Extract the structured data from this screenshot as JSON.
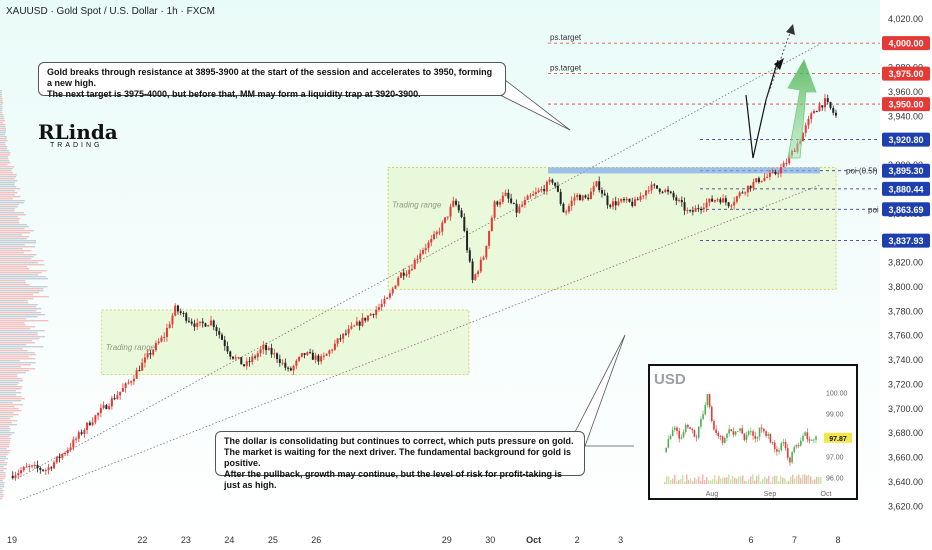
{
  "header": {
    "title": "XAUUSD · Gold Spot / U.S. Dollar · 1h · FXCM"
  },
  "logo": {
    "text": "RLinda",
    "subtitle": "TRADING"
  },
  "callouts": {
    "top": [
      "Gold breaks through resistance at 3895-3900 at the start of the session and accelerates to 3950, forming a new high.",
      "The next target is 3975-4000, but before that, MM may form a liquidity trap at 3920-3900."
    ],
    "bottom": [
      "The dollar is consolidating but continues to correct, which puts pressure on gold.",
      "The market is waiting for the next driver. The fundamental background for gold is positive.",
      "After the pullback, growth may continue, but the level of risk for profit-taking is just as high."
    ]
  },
  "colors": {
    "background_top": "#e8fbf7",
    "up_candle": "#e53935",
    "down_candle": "#222222",
    "range_fill": "#e5f7cf",
    "range_border": "#d9c64a",
    "level_line": "#1a237e",
    "target_badge": "#e53935",
    "level_badge": "#1e40af",
    "forecast_arrow": "#6fcf7f"
  },
  "chart_data": [
    {
      "type": "line",
      "subtype": "candlestick",
      "symbol": "XAUUSD",
      "timeframe": "1h",
      "y_axis": {
        "ticks": [
          3620,
          3640,
          3660,
          3680,
          3700,
          3720,
          3740,
          3760,
          3780,
          3800,
          3820,
          3840,
          3860,
          3880,
          3900,
          3920,
          3940,
          3960,
          3980,
          4000,
          4020
        ],
        "tick_labels": [
          "3,620.00",
          "3,640.00",
          "3,660.00",
          "3,680.00",
          "3,700.00",
          "3,720.00",
          "3,740.00",
          "3,760.00",
          "3,780.00",
          "3,800.00",
          "3,820.00",
          "3,840.00",
          "3,860.00",
          "3,880.00",
          "3,900.00",
          "3,920.00",
          "3,940.00",
          "3,960.00",
          "3,980.00",
          "4,000.00",
          "4,020.00"
        ],
        "range": [
          3612,
          4028
        ]
      },
      "x_axis": {
        "labels": [
          "19",
          "22",
          "23",
          "24",
          "25",
          "26",
          "29",
          "30",
          "Oct",
          "2",
          "3",
          "6",
          "7",
          "8"
        ],
        "positions": [
          0,
          3,
          4,
          5,
          6,
          7,
          10,
          11,
          12,
          13,
          14,
          17,
          18,
          19
        ]
      },
      "price_path": [
        [
          0,
          3645
        ],
        [
          0.5,
          3652
        ],
        [
          1,
          3650
        ],
        [
          1.6,
          3668
        ],
        [
          2.2,
          3690
        ],
        [
          2.7,
          3705
        ],
        [
          3.2,
          3720
        ],
        [
          3.8,
          3745
        ],
        [
          4.2,
          3760
        ],
        [
          4.5,
          3782
        ],
        [
          4.8,
          3775
        ],
        [
          5.1,
          3768
        ],
        [
          5.5,
          3772
        ],
        [
          6.0,
          3745
        ],
        [
          6.4,
          3735
        ],
        [
          6.9,
          3750
        ],
        [
          7.3,
          3742
        ],
        [
          7.6,
          3730
        ],
        [
          8.0,
          3745
        ],
        [
          8.5,
          3740
        ],
        [
          9.0,
          3758
        ],
        [
          9.5,
          3770
        ],
        [
          10.0,
          3782
        ],
        [
          10.3,
          3790
        ],
        [
          10.6,
          3810
        ],
        [
          10.9,
          3815
        ],
        [
          11.2,
          3830
        ],
        [
          11.5,
          3838
        ],
        [
          11.8,
          3852
        ],
        [
          12.1,
          3870
        ],
        [
          12.3,
          3858
        ],
        [
          12.6,
          3805
        ],
        [
          12.9,
          3825
        ],
        [
          13.2,
          3868
        ],
        [
          13.5,
          3875
        ],
        [
          13.8,
          3862
        ],
        [
          14.1,
          3872
        ],
        [
          14.5,
          3880
        ],
        [
          14.8,
          3888
        ],
        [
          15.1,
          3860
        ],
        [
          15.4,
          3875
        ],
        [
          15.7,
          3872
        ],
        [
          16.0,
          3885
        ],
        [
          16.3,
          3868
        ],
        [
          16.7,
          3870
        ],
        [
          17.0,
          3868
        ],
        [
          17.4,
          3882
        ],
        [
          17.8,
          3880
        ],
        [
          18.2,
          3870
        ],
        [
          18.5,
          3860
        ],
        [
          18.9,
          3868
        ],
        [
          19.3,
          3873
        ],
        [
          19.6,
          3868
        ],
        [
          20.0,
          3880
        ],
        [
          20.4,
          3888
        ],
        [
          20.8,
          3892
        ],
        [
          21.1,
          3900
        ],
        [
          21.5,
          3920
        ],
        [
          21.9,
          3945
        ],
        [
          22.2,
          3952
        ],
        [
          22.5,
          3940
        ]
      ],
      "key_levels": [
        {
          "price": 4000.0,
          "label": "4,000.00",
          "note": "ps.target",
          "kind": "target"
        },
        {
          "price": 3975.0,
          "label": "3,975.00",
          "note": "ps.target",
          "kind": "target"
        },
        {
          "price": 3950.0,
          "label": "3,950.00",
          "note": "",
          "kind": "target"
        },
        {
          "price": 3920.8,
          "label": "3,920.80",
          "note": "",
          "kind": "level"
        },
        {
          "price": 3895.3,
          "label": "3,895.30",
          "note": "poi (0.5f)",
          "kind": "level"
        },
        {
          "price": 3880.44,
          "label": "3,880.44",
          "note": "",
          "kind": "level"
        },
        {
          "price": 3863.69,
          "label": "3,863.69",
          "note": "poi",
          "kind": "level"
        },
        {
          "price": 3837.93,
          "label": "3,837.93",
          "note": "",
          "kind": "level"
        }
      ],
      "zones": [
        {
          "label": "Trading range",
          "x": [
            2.5,
            12.5
          ],
          "y": [
            3728,
            3781
          ]
        },
        {
          "label": "Trading range",
          "x": [
            10.3,
            22.5
          ],
          "y": [
            3798,
            3898
          ]
        }
      ],
      "legend": "none",
      "grid": false
    },
    {
      "type": "line",
      "subtype": "candlestick",
      "title": "USD",
      "y_axis": {
        "ticks": [
          96.0,
          97.0,
          98.0,
          99.0,
          100.0
        ],
        "tick_labels": [
          "96.00",
          "97.00",
          "98.00",
          "99.00",
          "100.00"
        ],
        "range": [
          95.7,
          100.3
        ],
        "last_value": "97.87"
      },
      "x_axis": {
        "labels": [
          "Aug",
          "Sep",
          "Oct"
        ]
      },
      "values": [
        97.2,
        98.0,
        98.3,
        97.8,
        98.6,
        98.2,
        97.9,
        98.9,
        99.9,
        98.3,
        98.0,
        97.7,
        98.4,
        98.1,
        98.3,
        97.8,
        98.2,
        97.9,
        98.4,
        98.0,
        97.5,
        97.1,
        97.8,
        96.7,
        97.3,
        97.6,
        98.1,
        97.7,
        97.9
      ]
    }
  ]
}
